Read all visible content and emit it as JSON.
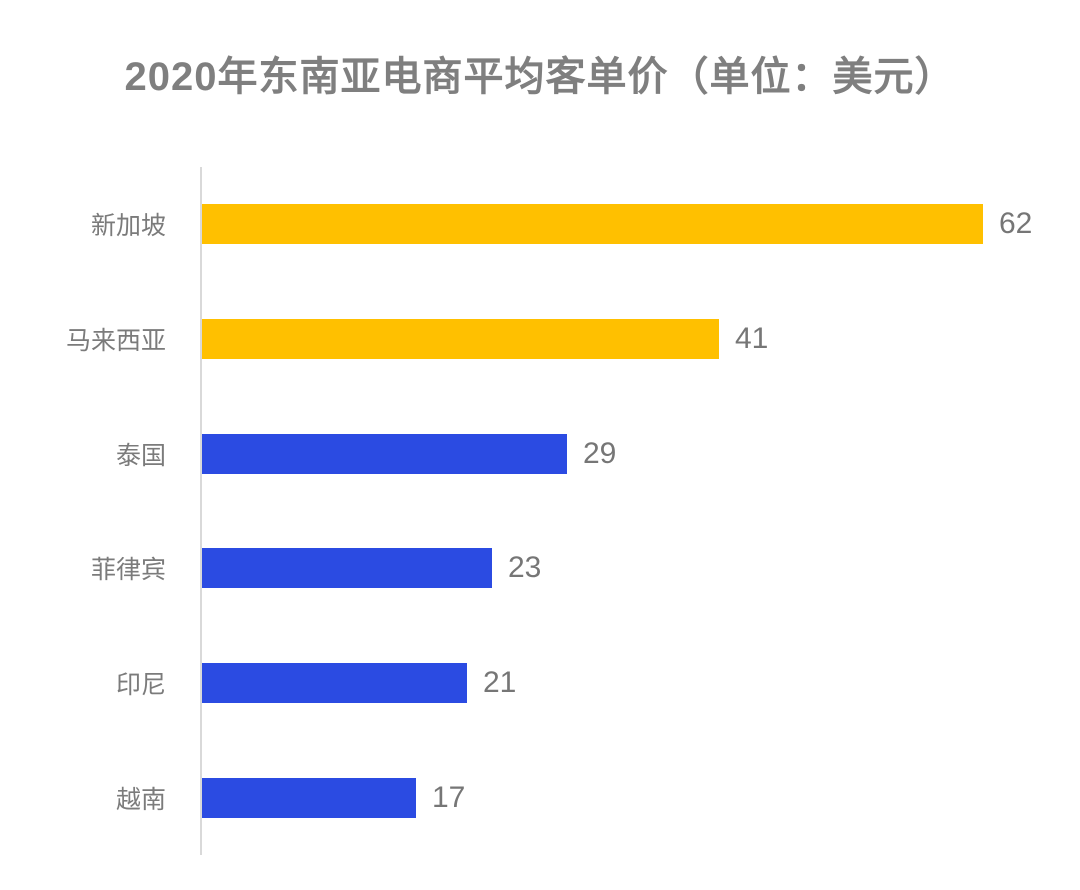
{
  "title": "2020年东南亚电商平均客单价（单位：美元）",
  "colors": {
    "highlight_bar": "#FFC000",
    "primary_bar": "#2B4BE2",
    "axis_line": "#D9D9D9",
    "title_text": "#7F7F7F",
    "label_text": "#7B7B7B",
    "value_text": "#767676",
    "background": "#FFFFFF"
  },
  "chart_data": {
    "type": "bar",
    "orientation": "horizontal",
    "title": "2020年东南亚电商平均客单价（单位：美元）",
    "unit": "美元",
    "categories": [
      "新加坡",
      "马来西亚",
      "泰国",
      "菲律宾",
      "印尼",
      "越南"
    ],
    "values": [
      62,
      41,
      29,
      23,
      21,
      17
    ],
    "bar_colors": [
      "#FFC000",
      "#FFC000",
      "#2B4BE2",
      "#2B4BE2",
      "#2B4BE2",
      "#2B4BE2"
    ],
    "value_labels_shown": true,
    "xlim": [
      0,
      70
    ],
    "grid": false,
    "legend": "none"
  }
}
